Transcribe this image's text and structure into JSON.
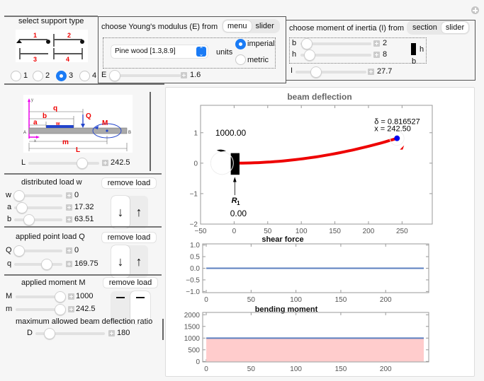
{
  "support": {
    "title": "select support type",
    "diagram_labels": [
      "1",
      "2",
      "3",
      "4"
    ],
    "options": [
      "1",
      "2",
      "3",
      "4"
    ],
    "selected": "3"
  },
  "youngs": {
    "title": "choose Young's modulus (E) from",
    "tabs": [
      "menu",
      "slider"
    ],
    "active_tab": "menu",
    "material": "Pine wood [1.3,8.9]",
    "units_label": "units",
    "units": [
      "imperial",
      "metric"
    ],
    "units_selected": "imperial",
    "E_label": "E",
    "E_value": "1.6"
  },
  "inertia": {
    "title": "choose moment of inertia (I) from",
    "tabs": [
      "section",
      "slider"
    ],
    "active_tab": "slider",
    "b_label": "b",
    "b_value": "2",
    "h_label": "h",
    "h_value": "8",
    "section_h": "h",
    "section_b": "b",
    "I_label": "I",
    "I_value": "27.7"
  },
  "beam_diagram": {
    "labels": {
      "q": "q",
      "b": "b",
      "a": "a",
      "w": "w",
      "Q": "Q",
      "M": "M",
      "A": "A",
      "B": "B",
      "m": "m",
      "L": "L",
      "x": "x",
      "y": "y"
    }
  },
  "length": {
    "label": "L",
    "value": "242.5"
  },
  "distributed": {
    "title": "distributed load w",
    "remove": "remove load",
    "sliders": [
      {
        "label": "w",
        "value": "0"
      },
      {
        "label": "a",
        "value": "17.32"
      },
      {
        "label": "b",
        "value": "63.51"
      }
    ],
    "direction": "down"
  },
  "point": {
    "title": "applied point load Q",
    "remove": "remove load",
    "sliders": [
      {
        "label": "Q",
        "value": "0"
      },
      {
        "label": "q",
        "value": "169.75"
      }
    ],
    "direction": "down"
  },
  "moment": {
    "title": "applied moment M",
    "remove": "remove load",
    "sliders": [
      {
        "label": "M",
        "value": "1000"
      },
      {
        "label": "m",
        "value": "242.5"
      }
    ],
    "direction": "clockwise"
  },
  "deflection_ratio": {
    "title": "maximum allowed beam deflection ratio",
    "label": "D",
    "value": "180"
  },
  "chart_data": [
    {
      "type": "line",
      "title": "beam deflection",
      "xlim": [
        -50,
        295
      ],
      "ylim": [
        -2,
        1.9
      ],
      "xticks": [
        "−50",
        "0",
        "50",
        "100",
        "150",
        "200",
        "250"
      ],
      "yticks": [
        "−2",
        "−1",
        "0",
        "1"
      ],
      "series": [
        {
          "name": "deflection",
          "x": [
            0,
            50,
            100,
            150,
            200,
            242.5
          ],
          "y": [
            0,
            0.035,
            0.139,
            0.313,
            0.556,
            0.8165
          ]
        }
      ],
      "annotations": {
        "delta_label": "δ = 0.816527",
        "x_label": "x =   242.50",
        "moment_reaction": "1000.00",
        "reaction_label": "R",
        "reaction_sub": "1",
        "reaction_value": "0.00"
      },
      "colors": {
        "curve": "#ee0000",
        "endpoint": "#0000ee"
      }
    },
    {
      "type": "line",
      "title": "shear force",
      "xlim": [
        -4,
        248
      ],
      "ylim": [
        -1.05,
        1.05
      ],
      "xticks": [
        "0",
        "50",
        "100",
        "150",
        "200"
      ],
      "yticks": [
        "1.0",
        "0.5",
        "0.0",
        "−0.5",
        "−1.0"
      ],
      "series": [
        {
          "name": "shear",
          "x": [
            0,
            242.5
          ],
          "y": [
            0,
            0
          ]
        }
      ],
      "colors": {
        "line": "#5b7fbf"
      }
    },
    {
      "type": "area",
      "title": "bending moment",
      "xlim": [
        -4,
        248
      ],
      "ylim": [
        -20,
        2100
      ],
      "xticks": [
        "0",
        "50",
        "100",
        "150",
        "200"
      ],
      "yticks": [
        "2000",
        "1500",
        "1000",
        "500",
        "0"
      ],
      "series": [
        {
          "name": "moment",
          "x": [
            0,
            242.5
          ],
          "y": [
            1000,
            1000
          ]
        }
      ],
      "colors": {
        "line": "#5b7fbf",
        "fill": "#ffcccc"
      }
    }
  ]
}
